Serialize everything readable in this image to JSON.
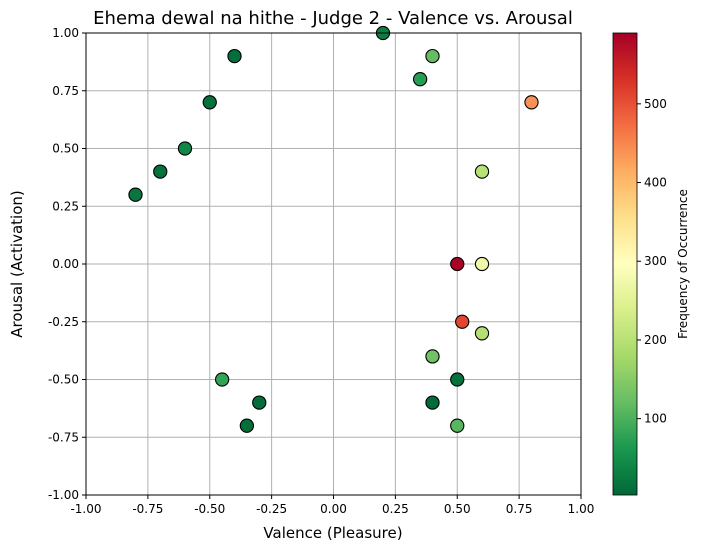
{
  "chart_data": {
    "type": "scatter",
    "title": "Ehema dewal na hithe - Judge 2 - Valence vs. Arousal",
    "xlabel": "Valence (Pleasure)",
    "ylabel": "Arousal (Activation)",
    "xlim": [
      -1.0,
      1.0
    ],
    "ylim": [
      -1.0,
      1.0
    ],
    "xticks": [
      "-1.00",
      "-0.75",
      "-0.50",
      "-0.25",
      "0.00",
      "0.25",
      "0.50",
      "0.75",
      "1.00"
    ],
    "yticks": [
      "-1.00",
      "-0.75",
      "-0.50",
      "-0.25",
      "0.00",
      "0.25",
      "0.50",
      "0.75",
      "1.00"
    ],
    "grid": true,
    "colorbar": {
      "label": "Frequency of Occurrence",
      "range": [
        3,
        590
      ],
      "ticks": [
        "100",
        "200",
        "300",
        "400",
        "500"
      ],
      "colormap": "RdYlGn_r"
    },
    "points": [
      {
        "x": 0.2,
        "y": 1.0,
        "freq": 30
      },
      {
        "x": 0.4,
        "y": 0.9,
        "freq": 120
      },
      {
        "x": 0.35,
        "y": 0.8,
        "freq": 70
      },
      {
        "x": 0.8,
        "y": 0.7,
        "freq": 440
      },
      {
        "x": -0.4,
        "y": 0.9,
        "freq": 10
      },
      {
        "x": -0.5,
        "y": 0.7,
        "freq": 15
      },
      {
        "x": -0.6,
        "y": 0.5,
        "freq": 40
      },
      {
        "x": -0.7,
        "y": 0.4,
        "freq": 15
      },
      {
        "x": -0.8,
        "y": 0.3,
        "freq": 20
      },
      {
        "x": 0.6,
        "y": 0.4,
        "freq": 200
      },
      {
        "x": 0.5,
        "y": 0.0,
        "freq": 585
      },
      {
        "x": 0.6,
        "y": 0.0,
        "freq": 270
      },
      {
        "x": 0.52,
        "y": -0.25,
        "freq": 510
      },
      {
        "x": 0.6,
        "y": -0.3,
        "freq": 195
      },
      {
        "x": 0.4,
        "y": -0.4,
        "freq": 130
      },
      {
        "x": 0.5,
        "y": -0.5,
        "freq": 15
      },
      {
        "x": 0.4,
        "y": -0.6,
        "freq": 8
      },
      {
        "x": 0.5,
        "y": -0.7,
        "freq": 110
      },
      {
        "x": -0.45,
        "y": -0.5,
        "freq": 80
      },
      {
        "x": -0.3,
        "y": -0.6,
        "freq": 10
      },
      {
        "x": -0.35,
        "y": -0.7,
        "freq": 10
      }
    ]
  }
}
